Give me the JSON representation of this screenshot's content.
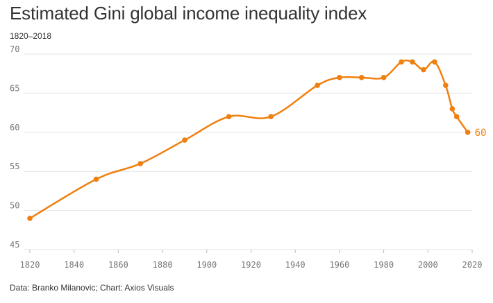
{
  "chart_data": {
    "type": "line",
    "title": "Estimated Gini global income inequality index",
    "subtitle": "1820–2018",
    "source": "Data: Branko Milanovic; Chart: Axios Visuals",
    "xlabel": "",
    "ylabel": "",
    "xlim": [
      1820,
      2020
    ],
    "ylim": [
      45,
      70
    ],
    "x_ticks": [
      1820,
      1840,
      1860,
      1880,
      1900,
      1920,
      1940,
      1960,
      1980,
      2000,
      2020
    ],
    "y_ticks": [
      45,
      50,
      55,
      60,
      65,
      70
    ],
    "grid": true,
    "series": [
      {
        "name": "Gini index",
        "color": "#f07f0f",
        "x": [
          1820,
          1850,
          1870,
          1890,
          1910,
          1929,
          1950,
          1960,
          1970,
          1980,
          1988,
          1993,
          1998,
          2003,
          2008,
          2011,
          2013,
          2018
        ],
        "values": [
          49,
          54,
          56,
          59,
          62,
          62,
          66,
          67,
          67,
          67,
          69,
          69,
          68,
          69,
          66,
          63,
          62,
          60
        ]
      }
    ],
    "end_label": "60"
  }
}
